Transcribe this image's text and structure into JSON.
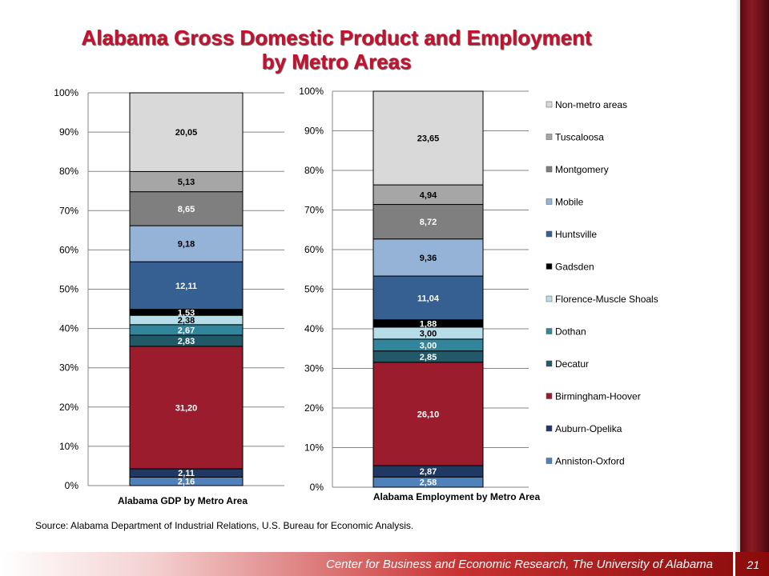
{
  "slide": {
    "title": "Alabama Gross Domestic Product and Employment by Metro Areas",
    "source": "Source: Alabama Department of Industrial Relations, U.S. Bureau for Economic Analysis.",
    "footer": "Center for Business and Economic Research, The University of Alabama",
    "page_number": "21"
  },
  "chart_data": [
    {
      "type": "bar",
      "stacked": true,
      "normalized": true,
      "xlabel": "Alabama GDP by Metro Area",
      "ylim": [
        0,
        100
      ],
      "y_ticks": [
        "0%",
        "10%",
        "20%",
        "30%",
        "40%",
        "50%",
        "60%",
        "70%",
        "80%",
        "90%",
        "100%"
      ],
      "grid": true,
      "segments": [
        {
          "name": "Anniston-Oxford",
          "value": "2,16"
        },
        {
          "name": "Auburn-Opelika",
          "value": "2,11"
        },
        {
          "name": "Birmingham-Hoover",
          "value": "31,20"
        },
        {
          "name": "Decatur",
          "value": "2,83"
        },
        {
          "name": "Dothan",
          "value": "2,67"
        },
        {
          "name": "Florence-Muscle Shoals",
          "value": "2,38"
        },
        {
          "name": "Gadsden",
          "value": "1,53"
        },
        {
          "name": "Huntsville",
          "value": "12,11"
        },
        {
          "name": "Mobile",
          "value": "9,18"
        },
        {
          "name": "Montgomery",
          "value": "8,65"
        },
        {
          "name": "Tuscaloosa",
          "value": "5,13"
        },
        {
          "name": "Non-metro areas",
          "value": "20,05"
        }
      ]
    },
    {
      "type": "bar",
      "stacked": true,
      "normalized": true,
      "xlabel": "Alabama Employment by Metro Area",
      "ylim": [
        0,
        100
      ],
      "y_ticks": [
        "0%",
        "10%",
        "20%",
        "30%",
        "40%",
        "50%",
        "60%",
        "70%",
        "80%",
        "90%",
        "100%"
      ],
      "grid": true,
      "legend_placement": "right",
      "segments": [
        {
          "name": "Anniston-Oxford",
          "value": "2,58"
        },
        {
          "name": "Auburn-Opelika",
          "value": "2,87"
        },
        {
          "name": "Birmingham-Hoover",
          "value": "26,10"
        },
        {
          "name": "Decatur",
          "value": "2,85"
        },
        {
          "name": "Dothan",
          "value": "3,00"
        },
        {
          "name": "Florence-Muscle Shoals",
          "value": "3,00"
        },
        {
          "name": "Gadsden",
          "value": "1,88"
        },
        {
          "name": "Huntsville",
          "value": "11,04"
        },
        {
          "name": "Mobile",
          "value": "9,36"
        },
        {
          "name": "Montgomery",
          "value": "8,72"
        },
        {
          "name": "Tuscaloosa",
          "value": "4,94"
        },
        {
          "name": "Non-metro areas",
          "value": "23,65"
        }
      ]
    }
  ],
  "legend": [
    {
      "name": "Non-metro areas",
      "color": "#d9d9d9"
    },
    {
      "name": "Tuscaloosa",
      "color": "#a6a6a6"
    },
    {
      "name": "Montgomery",
      "color": "#7f7f7f"
    },
    {
      "name": "Mobile",
      "color": "#95b3d7"
    },
    {
      "name": "Huntsville",
      "color": "#376092"
    },
    {
      "name": "Gadsden",
      "color": "#000000"
    },
    {
      "name": "Florence-Muscle Shoals",
      "color": "#b7dee8"
    },
    {
      "name": "Dothan",
      "color": "#31859c"
    },
    {
      "name": "Decatur",
      "color": "#215968"
    },
    {
      "name": "Birmingham-Hoover",
      "color": "#9b1c2c"
    },
    {
      "name": "Auburn-Opelika",
      "color": "#1f3864"
    },
    {
      "name": "Anniston-Oxford",
      "color": "#4f81bd"
    }
  ],
  "segment_colors": {
    "Anniston-Oxford": "#4f81bd",
    "Auburn-Opelika": "#1f3864",
    "Birmingham-Hoover": "#9b1c2c",
    "Decatur": "#215968",
    "Dothan": "#31859c",
    "Florence-Muscle Shoals": "#b7dee8",
    "Gadsden": "#000000",
    "Huntsville": "#376092",
    "Mobile": "#95b3d7",
    "Montgomery": "#7f7f7f",
    "Tuscaloosa": "#a6a6a6",
    "Non-metro areas": "#d9d9d9"
  },
  "label_colors": {
    "dark_on_light": "#000000",
    "light_on_dark": "#ffffff"
  }
}
